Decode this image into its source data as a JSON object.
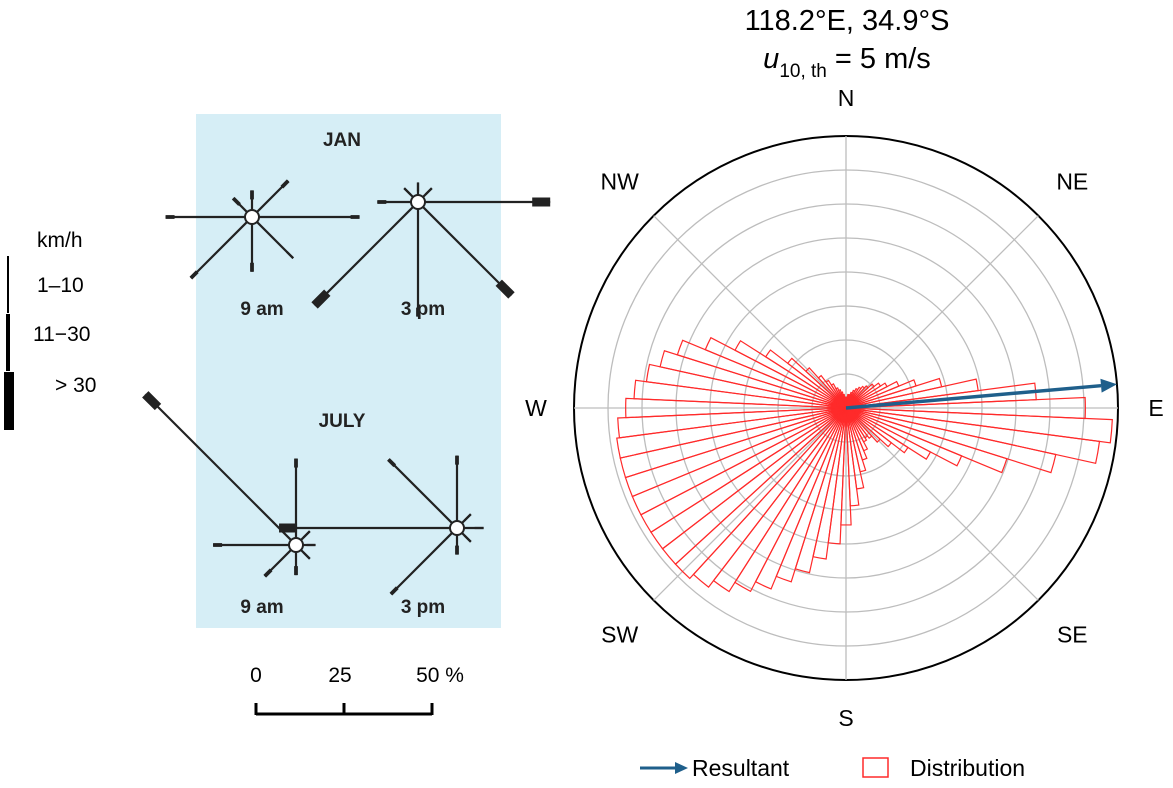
{
  "speed_legend": {
    "unit": "km/h",
    "classes": [
      "1–10",
      "11−30",
      "> 30"
    ]
  },
  "bom_panel": {
    "background": "#d6eef6",
    "months": [
      {
        "label": "JAN",
        "roses": [
          {
            "time": "9 am",
            "arms": [
              {
                "dir": 0,
                "pct": 5,
                "cls": 2
              },
              {
                "dir": 45,
                "pct": 12,
                "cls": 2
              },
              {
                "dir": 90,
                "pct": 28,
                "cls": 2
              },
              {
                "dir": 135,
                "pct": 14,
                "cls": 1
              },
              {
                "dir": 180,
                "pct": 13,
                "cls": 2
              },
              {
                "dir": 225,
                "pct": 22,
                "cls": 2
              },
              {
                "dir": 270,
                "pct": 22,
                "cls": 2
              },
              {
                "dir": 315,
                "pct": 5,
                "cls": 2
              }
            ]
          },
          {
            "time": "3 pm",
            "arms": [
              {
                "dir": 0,
                "pct": 3,
                "cls": 1
              },
              {
                "dir": 45,
                "pct": 3,
                "cls": 1
              },
              {
                "dir": 90,
                "pct": 35,
                "cls": 3
              },
              {
                "dir": 135,
                "pct": 35,
                "cls": 3
              },
              {
                "dir": 180,
                "pct": 30,
                "cls": 2
              },
              {
                "dir": 225,
                "pct": 39,
                "cls": 3
              },
              {
                "dir": 270,
                "pct": 9,
                "cls": 2
              },
              {
                "dir": 315,
                "pct": 3,
                "cls": 1
              }
            ]
          }
        ]
      },
      {
        "label": "JULY",
        "roses": [
          {
            "time": "9 am",
            "arms": [
              {
                "dir": 0,
                "pct": 22,
                "cls": 2
              },
              {
                "dir": 45,
                "pct": 3,
                "cls": 1
              },
              {
                "dir": 90,
                "pct": 3,
                "cls": 1
              },
              {
                "dir": 135,
                "pct": 3,
                "cls": 1
              },
              {
                "dir": 180,
                "pct": 6,
                "cls": 2
              },
              {
                "dir": 225,
                "pct": 10,
                "cls": 2
              },
              {
                "dir": 270,
                "pct": 21,
                "cls": 2
              },
              {
                "dir": 315,
                "pct": 58,
                "cls": 3
              }
            ]
          },
          {
            "time": "3 pm",
            "arms": [
              {
                "dir": 0,
                "pct": 18,
                "cls": 2
              },
              {
                "dir": 45,
                "pct": 3,
                "cls": 1
              },
              {
                "dir": 90,
                "pct": 5,
                "cls": 1
              },
              {
                "dir": 135,
                "pct": 3,
                "cls": 1
              },
              {
                "dir": 180,
                "pct": 5,
                "cls": 2
              },
              {
                "dir": 225,
                "pct": 24,
                "cls": 2
              },
              {
                "dir": 270,
                "pct": 48,
                "cls": 3
              },
              {
                "dir": 315,
                "pct": 25,
                "cls": 2
              }
            ]
          }
        ]
      }
    ]
  },
  "percent_scale": {
    "ticks": [
      "0",
      "25",
      "50 %"
    ],
    "tick_values": [
      0,
      25,
      50
    ]
  },
  "chart_data": {
    "type": "polar-histogram",
    "title": "118.2°E, 34.9°S",
    "subtitle_var": "u",
    "subtitle_sub": "10, th",
    "subtitle_rest": " = 5 m/s",
    "direction_labels": [
      "N",
      "NE",
      "E",
      "SE",
      "S",
      "SW",
      "W",
      "NW"
    ],
    "direction_angles": [
      0,
      45,
      90,
      135,
      180,
      225,
      270,
      315
    ],
    "rings": 8,
    "r_max": 1.0,
    "bin_width_deg": 5,
    "bins": [
      {
        "dir": 0,
        "r": 0.04
      },
      {
        "dir": 5,
        "r": 0.04
      },
      {
        "dir": 10,
        "r": 0.05
      },
      {
        "dir": 15,
        "r": 0.05
      },
      {
        "dir": 20,
        "r": 0.06
      },
      {
        "dir": 25,
        "r": 0.07
      },
      {
        "dir": 30,
        "r": 0.08
      },
      {
        "dir": 35,
        "r": 0.09
      },
      {
        "dir": 40,
        "r": 0.1
      },
      {
        "dir": 45,
        "r": 0.11
      },
      {
        "dir": 50,
        "r": 0.13
      },
      {
        "dir": 55,
        "r": 0.15
      },
      {
        "dir": 60,
        "r": 0.17
      },
      {
        "dir": 65,
        "r": 0.21
      },
      {
        "dir": 70,
        "r": 0.27
      },
      {
        "dir": 75,
        "r": 0.36
      },
      {
        "dir": 80,
        "r": 0.49
      },
      {
        "dir": 85,
        "r": 0.7
      },
      {
        "dir": 90,
        "r": 0.88
      },
      {
        "dir": 95,
        "r": 0.98
      },
      {
        "dir": 100,
        "r": 0.94
      },
      {
        "dir": 105,
        "r": 0.79
      },
      {
        "dir": 110,
        "r": 0.62
      },
      {
        "dir": 115,
        "r": 0.46
      },
      {
        "dir": 120,
        "r": 0.35
      },
      {
        "dir": 125,
        "r": 0.27
      },
      {
        "dir": 130,
        "r": 0.21
      },
      {
        "dir": 135,
        "r": 0.17
      },
      {
        "dir": 140,
        "r": 0.14
      },
      {
        "dir": 145,
        "r": 0.13
      },
      {
        "dir": 150,
        "r": 0.14
      },
      {
        "dir": 155,
        "r": 0.17
      },
      {
        "dir": 160,
        "r": 0.2
      },
      {
        "dir": 165,
        "r": 0.24
      },
      {
        "dir": 170,
        "r": 0.3
      },
      {
        "dir": 175,
        "r": 0.36
      },
      {
        "dir": 180,
        "r": 0.43
      },
      {
        "dir": 185,
        "r": 0.5
      },
      {
        "dir": 190,
        "r": 0.56
      },
      {
        "dir": 195,
        "r": 0.62
      },
      {
        "dir": 200,
        "r": 0.67
      },
      {
        "dir": 205,
        "r": 0.72
      },
      {
        "dir": 210,
        "r": 0.76
      },
      {
        "dir": 215,
        "r": 0.8
      },
      {
        "dir": 220,
        "r": 0.83
      },
      {
        "dir": 225,
        "r": 0.85
      },
      {
        "dir": 230,
        "r": 0.85
      },
      {
        "dir": 235,
        "r": 0.85
      },
      {
        "dir": 240,
        "r": 0.85
      },
      {
        "dir": 245,
        "r": 0.85
      },
      {
        "dir": 250,
        "r": 0.85
      },
      {
        "dir": 255,
        "r": 0.85
      },
      {
        "dir": 260,
        "r": 0.85
      },
      {
        "dir": 265,
        "r": 0.84
      },
      {
        "dir": 270,
        "r": 0.81
      },
      {
        "dir": 275,
        "r": 0.78
      },
      {
        "dir": 280,
        "r": 0.74
      },
      {
        "dir": 285,
        "r": 0.7
      },
      {
        "dir": 290,
        "r": 0.65
      },
      {
        "dir": 295,
        "r": 0.56
      },
      {
        "dir": 300,
        "r": 0.46
      },
      {
        "dir": 305,
        "r": 0.35
      },
      {
        "dir": 310,
        "r": 0.27
      },
      {
        "dir": 315,
        "r": 0.2
      },
      {
        "dir": 320,
        "r": 0.15
      },
      {
        "dir": 325,
        "r": 0.12
      },
      {
        "dir": 330,
        "r": 0.1
      },
      {
        "dir": 335,
        "r": 0.08
      },
      {
        "dir": 340,
        "r": 0.07
      },
      {
        "dir": 345,
        "r": 0.06
      },
      {
        "dir": 350,
        "r": 0.05
      },
      {
        "dir": 355,
        "r": 0.04
      }
    ],
    "resultant": {
      "dir": 85,
      "r": 1.0
    },
    "legend": [
      {
        "label": "Resultant",
        "kind": "arrow",
        "color": "#1f5f8b"
      },
      {
        "label": "Distribution",
        "kind": "box",
        "color": "#ff2a2a"
      }
    ],
    "distribution_color": "#ff2a2a",
    "resultant_color": "#1f5f8b",
    "grid": true
  }
}
